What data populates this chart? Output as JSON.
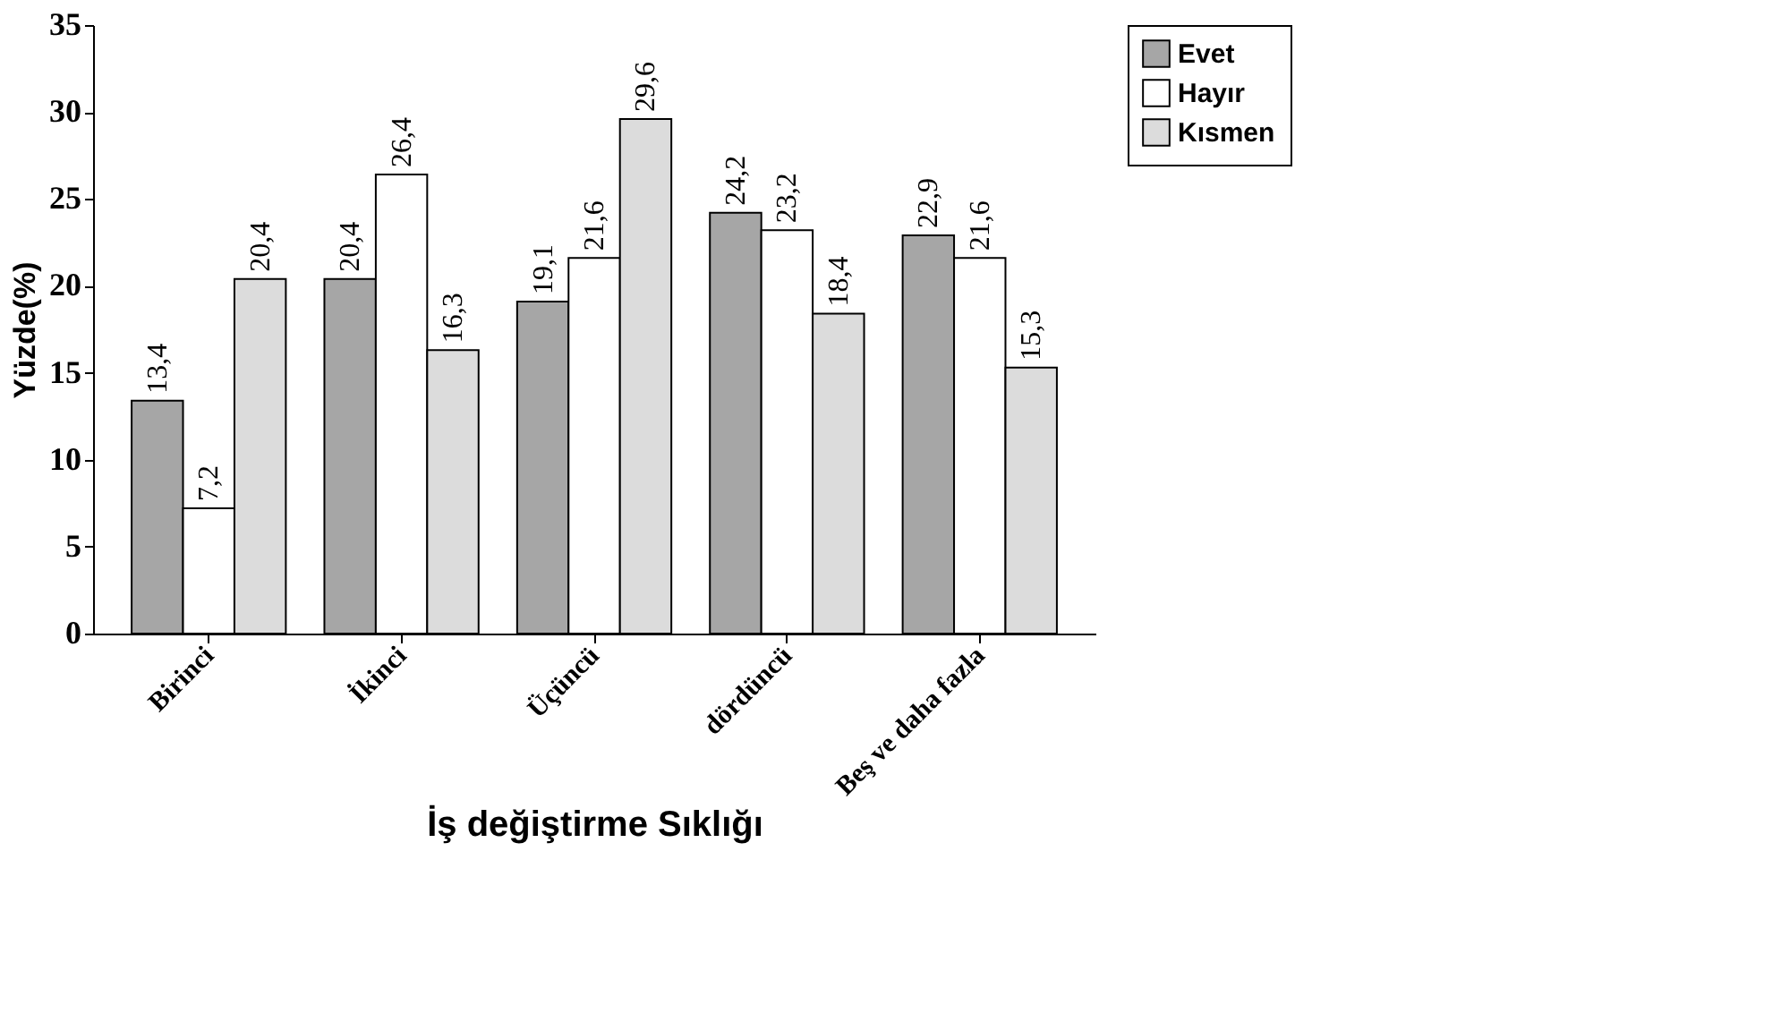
{
  "chart_data": {
    "type": "bar",
    "xlabel": "İş değiştirme Sıklığı",
    "ylabel": "Yüzde(%)",
    "categories": [
      "Birinci",
      "İkinci",
      "Üçüncü",
      "dördüncü",
      "Beş ve daha fazla"
    ],
    "series": [
      {
        "name": "Evet",
        "color": "#a6a6a6",
        "values": [
          13.4,
          20.4,
          19.1,
          24.2,
          22.9
        ],
        "value_labels": [
          "13,4",
          "20,4",
          "19,1",
          "24,2",
          "22,9"
        ]
      },
      {
        "name": "Hayır",
        "color": "#ffffff",
        "values": [
          7.2,
          26.4,
          21.6,
          23.2,
          21.6
        ],
        "value_labels": [
          "7,2",
          "26,4",
          "21,6",
          "23,2",
          "21,6"
        ]
      },
      {
        "name": "Kısmen",
        "color": "#dcdcdc",
        "values": [
          20.4,
          16.3,
          29.6,
          18.4,
          15.3
        ],
        "value_labels": [
          "20,4",
          "16,3",
          "29,6",
          "18,4",
          "15,3"
        ]
      }
    ],
    "ylim": [
      0,
      35
    ],
    "yticks": [
      0,
      5,
      10,
      15,
      20,
      25,
      30,
      35
    ],
    "grid": false,
    "legend": "right"
  }
}
